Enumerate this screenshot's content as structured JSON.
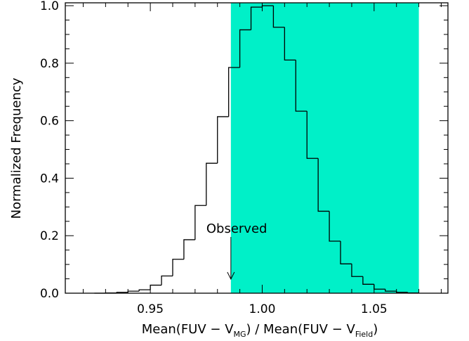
{
  "chart_data": {
    "type": "histogram",
    "xlabel": {
      "prefix": "Mean(FUV − V",
      "sub1": "MG",
      "middle": ") / Mean(FUV − V",
      "sub2": "Field",
      "suffix": ")"
    },
    "ylabel": "Normalized Frequency",
    "xlim": [
      0.912,
      1.083
    ],
    "ylim": [
      0.0,
      1.01
    ],
    "x_ticks": [
      {
        "value": 0.95,
        "label": "0.95"
      },
      {
        "value": 1.0,
        "label": "1.00"
      },
      {
        "value": 1.05,
        "label": "1.05"
      }
    ],
    "x_minor_step": 0.01,
    "y_ticks": [
      {
        "value": 0.0,
        "label": "0.0"
      },
      {
        "value": 0.2,
        "label": "0.2"
      },
      {
        "value": 0.4,
        "label": "0.4"
      },
      {
        "value": 0.6,
        "label": "0.6"
      },
      {
        "value": 0.8,
        "label": "0.8"
      },
      {
        "value": 1.0,
        "label": "1.0"
      }
    ],
    "y_minor_step": 0.05,
    "shaded_band": {
      "x0": 0.986,
      "x1": 1.07,
      "color": "#00f0c8"
    },
    "bin_edges": [
      0.925,
      0.93,
      0.935,
      0.94,
      0.945,
      0.95,
      0.955,
      0.96,
      0.965,
      0.97,
      0.975,
      0.98,
      0.985,
      0.99,
      0.995,
      1.0,
      1.005,
      1.01,
      1.015,
      1.02,
      1.025,
      1.03,
      1.035,
      1.04,
      1.045,
      1.05,
      1.055,
      1.06,
      1.065,
      1.07
    ],
    "values": [
      0.0,
      0.001,
      0.003,
      0.007,
      0.012,
      0.028,
      0.06,
      0.118,
      0.186,
      0.305,
      0.452,
      0.614,
      0.785,
      0.916,
      0.995,
      1.0,
      0.925,
      0.811,
      0.633,
      0.469,
      0.285,
      0.181,
      0.102,
      0.058,
      0.031,
      0.014,
      0.007,
      0.003,
      0.001
    ],
    "annotation": {
      "text": "Observed",
      "x": 0.986
    }
  }
}
